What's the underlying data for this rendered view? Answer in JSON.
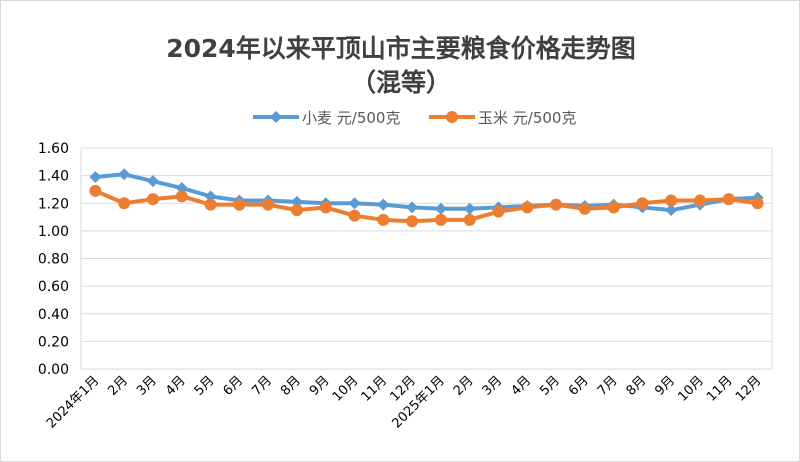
{
  "chart_data": {
    "type": "line",
    "title_line1": "2024年以来平顶山市主要粮食价格走势图",
    "title_line2": "（混等）",
    "categories": [
      "2024年1月",
      "2月",
      "3月",
      "4月",
      "5月",
      "6月",
      "7月",
      "8月",
      "9月",
      "10月",
      "11月",
      "12月",
      "2025年1月",
      "2月",
      "3月",
      "4月",
      "5月",
      "6月",
      "7月",
      "8月",
      "9月",
      "10月",
      "11月",
      "12月"
    ],
    "ylim": [
      0,
      1.6
    ],
    "yticks": [
      "0.00",
      "0.20",
      "0.40",
      "0.60",
      "0.80",
      "1.00",
      "1.20",
      "1.40",
      "1.60"
    ],
    "grid": true,
    "legend_position": "top",
    "series": [
      {
        "name": "小麦 元/500克",
        "color": "#5B9BD5",
        "marker": "diamond",
        "values": [
          1.39,
          1.41,
          1.36,
          1.31,
          1.25,
          1.22,
          1.22,
          1.21,
          1.2,
          1.2,
          1.19,
          1.17,
          1.16,
          1.16,
          1.17,
          1.18,
          1.19,
          1.18,
          1.19,
          1.17,
          1.15,
          1.19,
          1.23,
          1.24
        ]
      },
      {
        "name": "玉米 元/500克",
        "color": "#ED7D31",
        "marker": "circle",
        "values": [
          1.29,
          1.2,
          1.23,
          1.25,
          1.19,
          1.19,
          1.19,
          1.15,
          1.17,
          1.11,
          1.08,
          1.07,
          1.08,
          1.08,
          1.14,
          1.17,
          1.19,
          1.16,
          1.17,
          1.2,
          1.22,
          1.22,
          1.23,
          1.2
        ]
      }
    ]
  }
}
